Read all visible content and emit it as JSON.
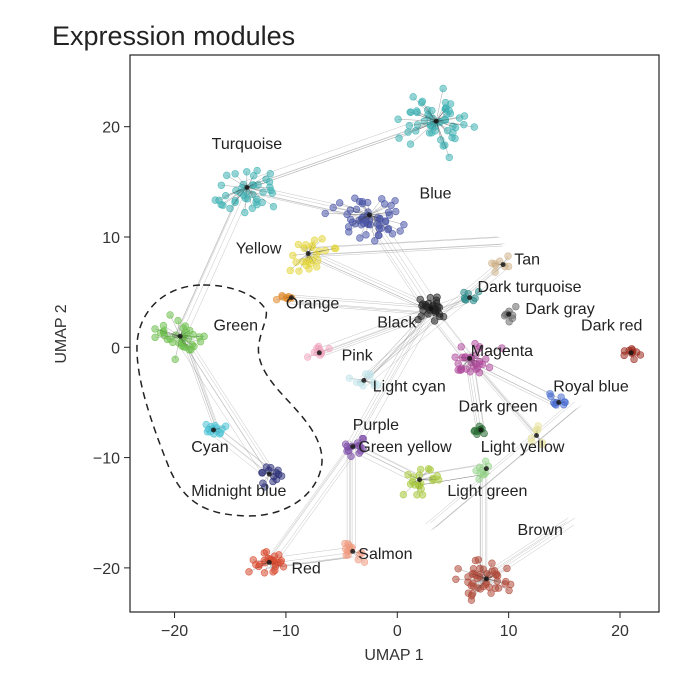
{
  "chart_data": {
    "type": "scatter",
    "title": "Expression modules",
    "xlabel": "UMAP 1",
    "ylabel": "UMAP 2",
    "xlim": [
      -24,
      23.5
    ],
    "ylim": [
      -24,
      26.5
    ],
    "xticks": [
      -20,
      -10,
      0,
      10,
      20
    ],
    "yticks": [
      -20,
      -10,
      0,
      10,
      20
    ],
    "xtick_labels": [
      "−20",
      "−10",
      "0",
      "10",
      "20"
    ],
    "ytick_labels": [
      "−20",
      "−10",
      "0",
      "10",
      "20"
    ],
    "modules": [
      {
        "name": "Turquoise",
        "color": "#40b3b5",
        "hub": [
          -13.5,
          14.5
        ],
        "spread": 2.2,
        "points": 40,
        "label": "Turquoise",
        "label_xy": [
          -13.5,
          18.0
        ],
        "anchor": "middle"
      },
      {
        "name": "Turquoise (upper)",
        "color": "#40b3b5",
        "hub": [
          3.5,
          20.5
        ],
        "spread": 2.6,
        "points": 55,
        "label": "",
        "label_xy": [
          0,
          0
        ],
        "anchor": "middle"
      },
      {
        "name": "Blue",
        "color": "#4a55a8",
        "hub": [
          -2.5,
          12.0
        ],
        "spread": 2.3,
        "points": 55,
        "label": "Blue",
        "label_xy": [
          2.0,
          13.5
        ],
        "anchor": "start"
      },
      {
        "name": "Yellow",
        "color": "#e3d63a",
        "hub": [
          -8.0,
          8.5
        ],
        "spread": 1.8,
        "points": 25,
        "label": "Yellow",
        "label_xy": [
          -14.5,
          8.5
        ],
        "anchor": "start"
      },
      {
        "name": "Tan",
        "color": "#d2b48c",
        "hub": [
          9.5,
          7.5
        ],
        "spread": 0.8,
        "points": 8,
        "label": "Tan",
        "label_xy": [
          10.5,
          7.5
        ],
        "anchor": "start"
      },
      {
        "name": "Orange",
        "color": "#e08a2c",
        "hub": [
          -9.5,
          4.5
        ],
        "spread": 0.8,
        "points": 8,
        "label": "Orange",
        "label_xy": [
          -10.0,
          3.5
        ],
        "anchor": "start"
      },
      {
        "name": "Dark turquoise",
        "color": "#2a8a8a",
        "hub": [
          6.5,
          4.5
        ],
        "spread": 0.8,
        "points": 8,
        "label": "Dark turquoise",
        "label_xy": [
          7.2,
          5.0
        ],
        "anchor": "start"
      },
      {
        "name": "Dark gray",
        "color": "#6b6b6b",
        "hub": [
          10.0,
          3.0
        ],
        "spread": 0.8,
        "points": 8,
        "label": "Dark gray",
        "label_xy": [
          11.5,
          3.0
        ],
        "anchor": "start"
      },
      {
        "name": "Dark red",
        "color": "#9b2a1e",
        "hub": [
          21.0,
          -0.5
        ],
        "spread": 0.7,
        "points": 10,
        "label": "Dark red",
        "label_xy": [
          16.5,
          1.5
        ],
        "anchor": "start"
      },
      {
        "name": "Black",
        "color": "#222222",
        "hub": [
          3.0,
          3.5
        ],
        "spread": 1.3,
        "points": 30,
        "label": "Black",
        "label_xy": [
          -1.8,
          1.8
        ],
        "anchor": "start"
      },
      {
        "name": "Green",
        "color": "#6cbf4a",
        "hub": [
          -19.5,
          1.0
        ],
        "spread": 1.8,
        "points": 35,
        "label": "Green",
        "label_xy": [
          -16.5,
          1.5
        ],
        "anchor": "start"
      },
      {
        "name": "Pink",
        "color": "#f0a8c0",
        "hub": [
          -7.0,
          -0.5
        ],
        "spread": 1.0,
        "points": 12,
        "label": "Pink",
        "label_xy": [
          -5.0,
          -1.2
        ],
        "anchor": "start"
      },
      {
        "name": "Magenta",
        "color": "#b04a9c",
        "hub": [
          6.5,
          -1.0
        ],
        "spread": 1.6,
        "points": 30,
        "label": "Magenta",
        "label_xy": [
          6.6,
          -0.8
        ],
        "anchor": "start"
      },
      {
        "name": "Light cyan",
        "color": "#bfe3ea",
        "hub": [
          -3.0,
          -3.0
        ],
        "spread": 0.9,
        "points": 10,
        "label": "Light cyan",
        "label_xy": [
          -2.2,
          -4.0
        ],
        "anchor": "start"
      },
      {
        "name": "Royal blue",
        "color": "#4a6ed1",
        "hub": [
          14.5,
          -5.0
        ],
        "spread": 0.8,
        "points": 10,
        "label": "Royal blue",
        "label_xy": [
          14.0,
          -4.0
        ],
        "anchor": "start"
      },
      {
        "name": "Dark green",
        "color": "#2a6e35",
        "hub": [
          7.5,
          -7.5
        ],
        "spread": 0.7,
        "points": 10,
        "label": "Dark green",
        "label_xy": [
          5.5,
          -5.8
        ],
        "anchor": "start"
      },
      {
        "name": "Purple",
        "color": "#7b4aa8",
        "hub": [
          -4.0,
          -9.0
        ],
        "spread": 1.0,
        "points": 14,
        "label": "Purple",
        "label_xy": [
          -4.0,
          -7.5
        ],
        "anchor": "start"
      },
      {
        "name": "Green yellow",
        "color": "#a8c83a",
        "hub": [
          2.0,
          -12.0
        ],
        "spread": 1.4,
        "points": 20,
        "label": "Green yellow",
        "label_xy": [
          -3.5,
          -9.5
        ],
        "anchor": "start"
      },
      {
        "name": "Light yellow",
        "color": "#e8e4a0",
        "hub": [
          12.5,
          -8.0
        ],
        "spread": 0.8,
        "points": 8,
        "label": "Light yellow",
        "label_xy": [
          7.5,
          -9.5
        ],
        "anchor": "start"
      },
      {
        "name": "Cyan",
        "color": "#4ac3d6",
        "hub": [
          -16.5,
          -7.5
        ],
        "spread": 1.0,
        "points": 14,
        "label": "Cyan",
        "label_xy": [
          -18.5,
          -9.5
        ],
        "anchor": "start"
      },
      {
        "name": "Midnight blue",
        "color": "#2c2f78",
        "hub": [
          -11.5,
          -11.5
        ],
        "spread": 1.0,
        "points": 14,
        "label": "Midnight blue",
        "label_xy": [
          -18.5,
          -13.5
        ],
        "anchor": "start"
      },
      {
        "name": "Light green",
        "color": "#98d68c",
        "hub": [
          8.0,
          -11.0
        ],
        "spread": 0.8,
        "points": 10,
        "label": "Light green",
        "label_xy": [
          4.5,
          -13.5
        ],
        "anchor": "start"
      },
      {
        "name": "Red",
        "color": "#d84a30",
        "hub": [
          -11.5,
          -19.5
        ],
        "spread": 1.3,
        "points": 25,
        "label": "Red",
        "label_xy": [
          -9.5,
          -20.5
        ],
        "anchor": "start"
      },
      {
        "name": "Salmon",
        "color": "#f09a80",
        "hub": [
          -4.0,
          -18.5
        ],
        "spread": 1.0,
        "points": 14,
        "label": "Salmon",
        "label_xy": [
          -3.5,
          -19.2
        ],
        "anchor": "start"
      },
      {
        "name": "Brown",
        "color": "#b04a3a",
        "hub": [
          8.0,
          -21.0
        ],
        "spread": 2.0,
        "points": 45,
        "label": "Brown",
        "label_xy": [
          10.8,
          -17.0
        ],
        "anchor": "start"
      }
    ],
    "links": [
      [
        [
          -13.5,
          14.5
        ],
        [
          3.5,
          20.5
        ]
      ],
      [
        [
          -13.5,
          14.5
        ],
        [
          -2.5,
          12.0
        ]
      ],
      [
        [
          -2.5,
          12.0
        ],
        [
          3.0,
          3.5
        ]
      ],
      [
        [
          -8.0,
          8.5
        ],
        [
          3.0,
          3.5
        ]
      ],
      [
        [
          -8.0,
          8.5
        ],
        [
          9.5,
          9.5
        ]
      ],
      [
        [
          3.0,
          3.5
        ],
        [
          6.5,
          -1.0
        ]
      ],
      [
        [
          -7.0,
          -0.5
        ],
        [
          6.5,
          4.5
        ]
      ],
      [
        [
          -3.0,
          -3.0
        ],
        [
          9.5,
          7.5
        ]
      ],
      [
        [
          6.5,
          -1.0
        ],
        [
          14.5,
          -5.0
        ]
      ],
      [
        [
          -4.0,
          -9.0
        ],
        [
          2.0,
          -12.0
        ]
      ],
      [
        [
          -4.0,
          -9.0
        ],
        [
          3.0,
          3.5
        ]
      ],
      [
        [
          2.0,
          -12.0
        ],
        [
          8.0,
          -11.0
        ]
      ],
      [
        [
          -11.5,
          -19.5
        ],
        [
          -4.0,
          -9.0
        ]
      ],
      [
        [
          -11.5,
          -19.5
        ],
        [
          -4.0,
          -18.5
        ]
      ],
      [
        [
          -4.0,
          -18.5
        ],
        [
          -4.0,
          -9.0
        ]
      ],
      [
        [
          8.0,
          -21.0
        ],
        [
          8.0,
          -11.0
        ]
      ],
      [
        [
          3.0,
          -16.5
        ],
        [
          16.0,
          -5.5
        ]
      ],
      [
        [
          -16.5,
          -7.5
        ],
        [
          -19.5,
          1.0
        ]
      ],
      [
        [
          -16.5,
          -7.5
        ],
        [
          -11.5,
          -11.5
        ]
      ],
      [
        [
          -19.5,
          1.0
        ],
        [
          -11.5,
          -11.5
        ]
      ],
      [
        [
          -13.5,
          14.5
        ],
        [
          -19.5,
          1.0
        ]
      ],
      [
        [
          6.5,
          -1.0
        ],
        [
          12.5,
          -8.0
        ]
      ],
      [
        [
          -3.0,
          -3.0
        ],
        [
          3.0,
          3.5
        ]
      ],
      [
        [
          -9.5,
          4.5
        ],
        [
          3.0,
          3.5
        ]
      ],
      [
        [
          7.5,
          -7.5
        ],
        [
          6.5,
          -1.0
        ]
      ],
      [
        [
          8.0,
          -21.0
        ],
        [
          15.5,
          -16.0
        ]
      ]
    ],
    "region": {
      "shape": "dashed-outline",
      "encloses": [
        "Green",
        "Cyan",
        "Midnight blue"
      ]
    }
  }
}
